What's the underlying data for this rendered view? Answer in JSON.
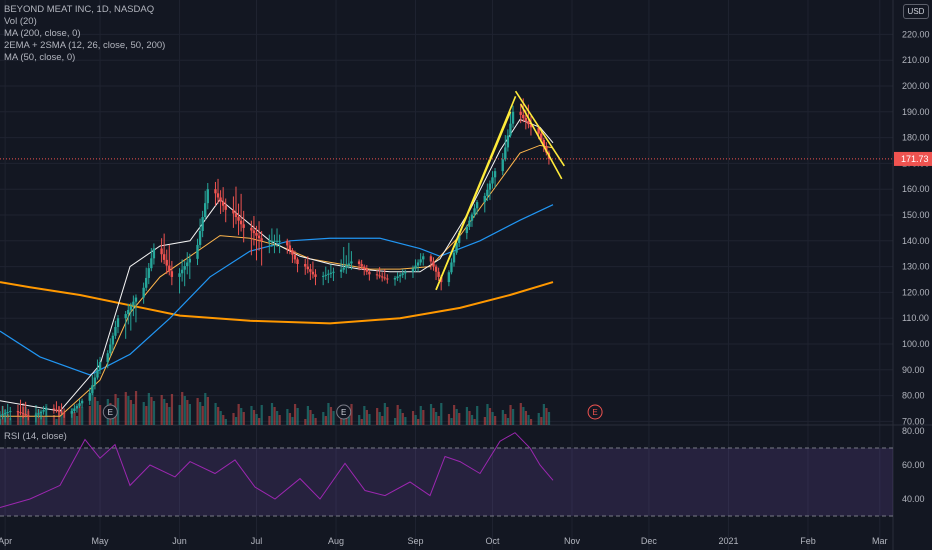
{
  "legend": {
    "symbol": "BEYOND MEAT INC, 1D, NASDAQ",
    "vol": "Vol (20)",
    "ma200": "MA (200, close, 0)",
    "ema_sma": "2EMA + 2SMA (12, 26, close, 50, 200)",
    "ma50": "MA (50, close, 0)",
    "rsi": "RSI (14, close)"
  },
  "currency_button": "USD",
  "last_price_label": "171.73",
  "earnings_marker_label": "E",
  "colors": {
    "background": "#131722",
    "grid": "#1f2330",
    "up": "#26a69a",
    "down": "#ef5350",
    "ma200": "#ff9800",
    "ma50": "#2196f3",
    "ema_fast": "#f5f5f5",
    "ema_slow": "#ffb74d",
    "rsi": "#9c27b0",
    "trendline": "#ffeb3b"
  },
  "chart_data": {
    "type": "candlestick",
    "x_ticks": [
      "Apr",
      "May",
      "Jun",
      "Jul",
      "Aug",
      "Sep",
      "Oct",
      "Nov",
      "Dec",
      "2021",
      "Feb",
      "Mar"
    ],
    "y_ticks": [
      "220.00",
      "210.00",
      "200.00",
      "190.00",
      "180.00",
      "170.00",
      "160.00",
      "150.00",
      "140.00",
      "130.00",
      "120.00",
      "110.00",
      "100.00",
      "90.00",
      "80.00",
      "70.00"
    ],
    "y_range": [
      70,
      226
    ],
    "last_price": 171.73,
    "rsi_ticks": [
      "80.00",
      "60.00",
      "40.00"
    ],
    "rsi_range": [
      20,
      80
    ],
    "rsi_bands": [
      70,
      30
    ],
    "candles_weekly_approx": [
      {
        "d": "2020-03-23",
        "o": 72,
        "h": 78,
        "l": 68,
        "c": 74
      },
      {
        "d": "2020-03-30",
        "o": 74,
        "h": 80,
        "l": 70,
        "c": 72
      },
      {
        "d": "2020-04-06",
        "o": 72,
        "h": 77,
        "l": 69,
        "c": 75
      },
      {
        "d": "2020-04-13",
        "o": 75,
        "h": 79,
        "l": 71,
        "c": 73
      },
      {
        "d": "2020-04-20",
        "o": 73,
        "h": 80,
        "l": 71,
        "c": 78
      },
      {
        "d": "2020-04-27",
        "o": 78,
        "h": 98,
        "l": 76,
        "c": 93
      },
      {
        "d": "2020-05-04",
        "o": 93,
        "h": 113,
        "l": 90,
        "c": 110
      },
      {
        "d": "2020-05-11",
        "o": 110,
        "h": 121,
        "l": 100,
        "c": 118
      },
      {
        "d": "2020-05-18",
        "o": 118,
        "h": 142,
        "l": 115,
        "c": 137
      },
      {
        "d": "2020-05-25",
        "o": 137,
        "h": 147,
        "l": 122,
        "c": 126
      },
      {
        "d": "2020-06-01",
        "o": 126,
        "h": 138,
        "l": 118,
        "c": 133
      },
      {
        "d": "2020-06-08",
        "o": 133,
        "h": 166,
        "l": 130,
        "c": 160
      },
      {
        "d": "2020-06-15",
        "o": 160,
        "h": 167,
        "l": 146,
        "c": 152
      },
      {
        "d": "2020-06-22",
        "o": 152,
        "h": 165,
        "l": 138,
        "c": 145
      },
      {
        "d": "2020-06-29",
        "o": 145,
        "h": 152,
        "l": 128,
        "c": 140
      },
      {
        "d": "2020-07-06",
        "o": 140,
        "h": 146,
        "l": 134,
        "c": 140
      },
      {
        "d": "2020-07-13",
        "o": 140,
        "h": 142,
        "l": 127,
        "c": 131
      },
      {
        "d": "2020-07-20",
        "o": 131,
        "h": 136,
        "l": 122,
        "c": 126
      },
      {
        "d": "2020-07-27",
        "o": 126,
        "h": 132,
        "l": 122,
        "c": 128
      },
      {
        "d": "2020-08-03",
        "o": 128,
        "h": 142,
        "l": 125,
        "c": 132
      },
      {
        "d": "2020-08-10",
        "o": 132,
        "h": 134,
        "l": 124,
        "c": 127
      },
      {
        "d": "2020-08-17",
        "o": 127,
        "h": 131,
        "l": 123,
        "c": 125
      },
      {
        "d": "2020-08-24",
        "o": 125,
        "h": 130,
        "l": 122,
        "c": 128
      },
      {
        "d": "2020-08-31",
        "o": 128,
        "h": 137,
        "l": 125,
        "c": 134
      },
      {
        "d": "2020-09-07",
        "o": 134,
        "h": 136,
        "l": 120,
        "c": 124
      },
      {
        "d": "2020-09-14",
        "o": 124,
        "h": 145,
        "l": 122,
        "c": 143
      },
      {
        "d": "2020-09-21",
        "o": 143,
        "h": 157,
        "l": 140,
        "c": 155
      },
      {
        "d": "2020-09-28",
        "o": 155,
        "h": 170,
        "l": 150,
        "c": 167
      },
      {
        "d": "2020-10-05",
        "o": 167,
        "h": 196,
        "l": 165,
        "c": 190
      },
      {
        "d": "2020-10-12",
        "o": 190,
        "h": 198,
        "l": 180,
        "c": 184
      },
      {
        "d": "2020-10-19",
        "o": 184,
        "h": 186,
        "l": 169,
        "c": 171.73
      }
    ],
    "ma200": [
      [
        0,
        124
      ],
      [
        30,
        122
      ],
      [
        80,
        119
      ],
      [
        130,
        115
      ],
      [
        180,
        111
      ],
      [
        250,
        109
      ],
      [
        330,
        108
      ],
      [
        400,
        110
      ],
      [
        460,
        114
      ],
      [
        510,
        119
      ],
      [
        553,
        124
      ]
    ],
    "ma50": [
      [
        0,
        105
      ],
      [
        40,
        95
      ],
      [
        90,
        88
      ],
      [
        130,
        96
      ],
      [
        170,
        110
      ],
      [
        210,
        126
      ],
      [
        250,
        136
      ],
      [
        290,
        140
      ],
      [
        330,
        141
      ],
      [
        380,
        141
      ],
      [
        420,
        137
      ],
      [
        440,
        134
      ],
      [
        480,
        140
      ],
      [
        520,
        148
      ],
      [
        553,
        154
      ]
    ],
    "ema_fast": [
      [
        0,
        78
      ],
      [
        60,
        74
      ],
      [
        100,
        92
      ],
      [
        130,
        130
      ],
      [
        160,
        138
      ],
      [
        190,
        140
      ],
      [
        220,
        156
      ],
      [
        245,
        148
      ],
      [
        270,
        140
      ],
      [
        300,
        134
      ],
      [
        330,
        131
      ],
      [
        360,
        129
      ],
      [
        390,
        128
      ],
      [
        420,
        128
      ],
      [
        440,
        133
      ],
      [
        470,
        152
      ],
      [
        500,
        175
      ],
      [
        520,
        187
      ],
      [
        540,
        184
      ],
      [
        553,
        178
      ]
    ],
    "ema_slow": [
      [
        0,
        72
      ],
      [
        60,
        72
      ],
      [
        100,
        86
      ],
      [
        130,
        112
      ],
      [
        160,
        126
      ],
      [
        190,
        134
      ],
      [
        220,
        142
      ],
      [
        250,
        141
      ],
      [
        280,
        138
      ],
      [
        310,
        133
      ],
      [
        340,
        131
      ],
      [
        370,
        129
      ],
      [
        400,
        129
      ],
      [
        430,
        130
      ],
      [
        460,
        142
      ],
      [
        490,
        158
      ],
      [
        520,
        174
      ],
      [
        540,
        177
      ],
      [
        553,
        176
      ]
    ],
    "rsi": [
      [
        0,
        35
      ],
      [
        30,
        40
      ],
      [
        60,
        48
      ],
      [
        85,
        75
      ],
      [
        100,
        64
      ],
      [
        115,
        72
      ],
      [
        130,
        48
      ],
      [
        150,
        60
      ],
      [
        175,
        53
      ],
      [
        190,
        62
      ],
      [
        215,
        55
      ],
      [
        235,
        63
      ],
      [
        255,
        47
      ],
      [
        275,
        40
      ],
      [
        300,
        52
      ],
      [
        320,
        40
      ],
      [
        345,
        61
      ],
      [
        365,
        45
      ],
      [
        385,
        42
      ],
      [
        410,
        50
      ],
      [
        430,
        42
      ],
      [
        445,
        65
      ],
      [
        460,
        62
      ],
      [
        480,
        55
      ],
      [
        500,
        74
      ],
      [
        515,
        79
      ],
      [
        530,
        70
      ],
      [
        540,
        60
      ],
      [
        553,
        51
      ]
    ],
    "trendlines": [
      {
        "from": [
          "2020-09-09",
          121
        ],
        "to": [
          "2020-10-10",
          196
        ]
      },
      {
        "from": [
          "2020-09-09",
          121
        ],
        "to": [
          "2020-10-08",
          190
        ]
      },
      {
        "from": [
          "2020-10-10",
          198
        ],
        "to": [
          "2020-10-29",
          169
        ]
      },
      {
        "from": [
          "2020-10-12",
          193
        ],
        "to": [
          "2020-10-28",
          164
        ]
      }
    ],
    "earnings_markers": [
      "2020-05-05",
      "2020-08-04",
      "2020-11-10"
    ]
  }
}
